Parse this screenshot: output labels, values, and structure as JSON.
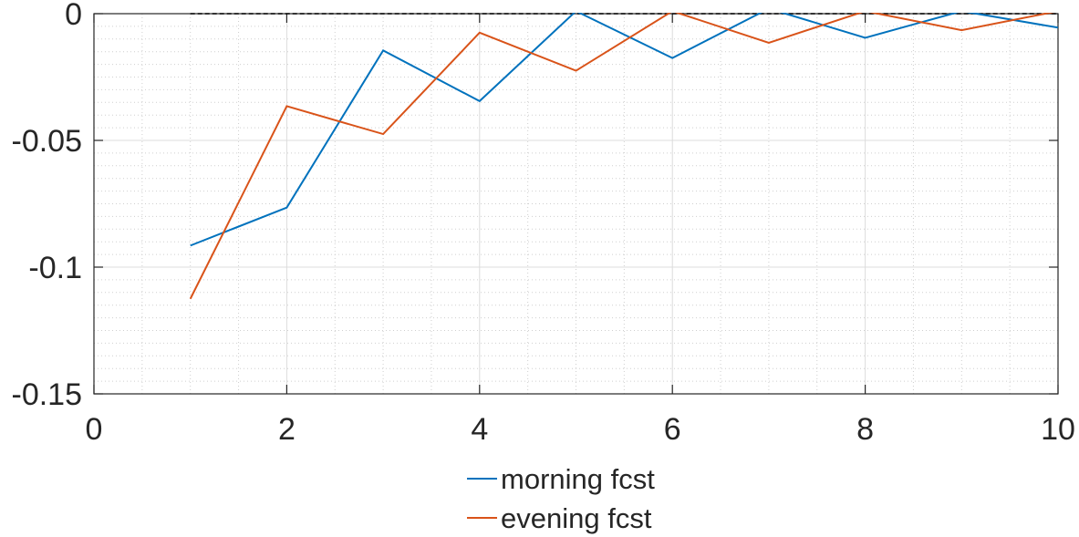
{
  "chart_data": {
    "type": "line",
    "title": "",
    "xlabel": "",
    "ylabel": "",
    "xlim": [
      0,
      10
    ],
    "ylim": [
      -0.15,
      0
    ],
    "x_ticks": [
      0,
      2,
      4,
      6,
      8,
      10
    ],
    "x_tick_labels": [
      "0",
      "2",
      "4",
      "6",
      "8",
      "10"
    ],
    "y_ticks": [
      0,
      -0.05,
      -0.1,
      -0.15
    ],
    "y_tick_labels": [
      "0",
      "-0.05",
      "-0.1",
      "-0.15"
    ],
    "grid": true,
    "minor_grid": true,
    "legend_position": "bottom",
    "reference_line": {
      "y": 0,
      "style": "dashed",
      "color": "#000000",
      "x_start": 1,
      "x_end": 10
    },
    "series": [
      {
        "name": "morning fcst",
        "color": "#0072BD",
        "x": [
          1,
          2,
          3,
          4,
          5,
          6,
          7,
          8,
          9,
          10
        ],
        "y": [
          -0.0915,
          -0.0765,
          -0.0145,
          -0.0345,
          0.001,
          -0.0175,
          0.002,
          -0.0095,
          0.001,
          -0.0055
        ]
      },
      {
        "name": "evening fcst",
        "color": "#D95319",
        "x": [
          1,
          2,
          3,
          4,
          5,
          6,
          7,
          8,
          9,
          10
        ],
        "y": [
          -0.1125,
          -0.0365,
          -0.0475,
          -0.0075,
          -0.0225,
          0.001,
          -0.0115,
          0.001,
          -0.0065,
          0.001
        ]
      }
    ]
  }
}
